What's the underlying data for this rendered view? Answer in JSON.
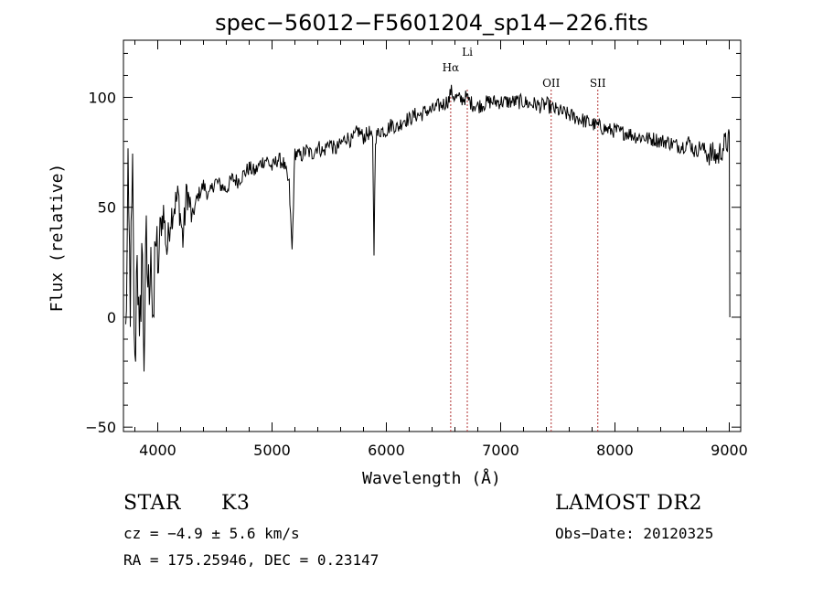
{
  "chart_data": {
    "type": "line",
    "title": "spec−56012−F5601204_sp14−226.fits",
    "xlabel": "Wavelength (Å)",
    "ylabel": "Flux (relative)",
    "xlim": [
      3700,
      9100
    ],
    "ylim": [
      -52,
      126
    ],
    "xticks": [
      4000,
      5000,
      6000,
      7000,
      8000,
      9000
    ],
    "yticks": [
      -50,
      0,
      50,
      100
    ],
    "lines": [
      {
        "label": "Hα",
        "x": 6563
      },
      {
        "label": "Li",
        "x": 6708
      },
      {
        "label": "OII",
        "x": 7442
      },
      {
        "label": "SII",
        "x": 7850
      }
    ],
    "series": [
      {
        "x": [
          3720,
          3740,
          3760,
          3780,
          3800,
          3820,
          3840,
          3860,
          3880,
          3900,
          3920,
          3940,
          3960,
          3980,
          4000,
          4020,
          4050,
          4080,
          4110,
          4140,
          4180,
          4220,
          4255,
          4300,
          4350,
          4400,
          4450,
          4500,
          4550,
          4600,
          4650,
          4700,
          4750,
          4800,
          4850,
          4900,
          4950,
          5000,
          5050,
          5100,
          5150,
          5175,
          5200,
          5250,
          5300,
          5350,
          5400,
          5450,
          5500,
          5550,
          5590,
          5650,
          5700,
          5750,
          5800,
          5850,
          5880,
          5892,
          5905,
          5950,
          6000,
          6050,
          6100,
          6150,
          6200,
          6250,
          6300,
          6350,
          6400,
          6450,
          6500,
          6550,
          6563,
          6600,
          6650,
          6700,
          6750,
          6800,
          6850,
          6900,
          6950,
          7000,
          7050,
          7100,
          7150,
          7200,
          7250,
          7300,
          7350,
          7400,
          7450,
          7500,
          7550,
          7600,
          7650,
          7700,
          7750,
          7800,
          7850,
          7900,
          7950,
          8000,
          8050,
          8100,
          8150,
          8200,
          8250,
          8300,
          8350,
          8400,
          8450,
          8500,
          8550,
          8600,
          8650,
          8700,
          8750,
          8800,
          8850,
          8900,
          8950,
          8990,
          9000,
          9005
        ],
        "y": [
          -10,
          55,
          10,
          60,
          -30,
          40,
          -25,
          35,
          -15,
          30,
          10,
          40,
          -20,
          45,
          15,
          40,
          48,
          30,
          45,
          50,
          55,
          35,
          58,
          45,
          55,
          60,
          55,
          62,
          60,
          58,
          63,
          62,
          65,
          68,
          66,
          70,
          72,
          68,
          72,
          70,
          60,
          30,
          75,
          73,
          76,
          74,
          78,
          75,
          80,
          76,
          78,
          82,
          80,
          85,
          82,
          84,
          80,
          30,
          82,
          85,
          85,
          88,
          86,
          90,
          90,
          92,
          92,
          94,
          94,
          96,
          97,
          99,
          103,
          100,
          99,
          100,
          97,
          96,
          97,
          98,
          98,
          98,
          98,
          98,
          98,
          98,
          97,
          97,
          96,
          97,
          95,
          94,
          93,
          92,
          91,
          90,
          89,
          88,
          87,
          86,
          85,
          85,
          84,
          84,
          83,
          82,
          82,
          81,
          81,
          80,
          80,
          79,
          78,
          78,
          80,
          75,
          78,
          75,
          74,
          73,
          78,
          80,
          80,
          0
        ]
      }
    ]
  },
  "footer": {
    "object_class": "STAR",
    "subclass": "K3",
    "survey": "LAMOST DR2",
    "cz": "cz = −4.9 ± 5.6 km/s",
    "obs_date": "Obs−Date: 20120325",
    "radec": "RA = 175.25946, DEC =   0.23147"
  }
}
